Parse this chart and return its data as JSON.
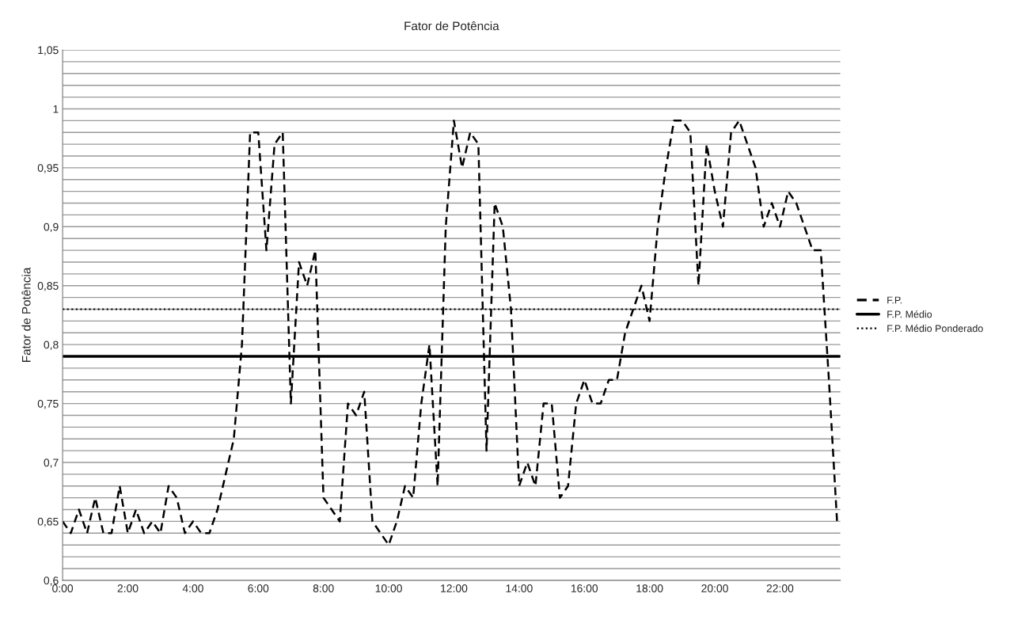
{
  "chart_data": {
    "type": "line",
    "title": "Fator de Potência",
    "ylabel": "Fator de Potência",
    "categories": [
      "0:00",
      null,
      null,
      null,
      null,
      null,
      null,
      null,
      "2:00",
      null,
      null,
      null,
      null,
      null,
      null,
      null,
      "4:00",
      null,
      null,
      null,
      null,
      null,
      null,
      null,
      "6:00",
      null,
      null,
      null,
      null,
      null,
      null,
      null,
      "8:00",
      null,
      null,
      null,
      null,
      null,
      null,
      null,
      "10:00",
      null,
      null,
      null,
      null,
      null,
      null,
      null,
      "12:00",
      null,
      null,
      null,
      null,
      null,
      null,
      null,
      "14:00",
      null,
      null,
      null,
      null,
      null,
      null,
      null,
      "16:00",
      null,
      null,
      null,
      null,
      null,
      null,
      null,
      "18:00",
      null,
      null,
      null,
      null,
      null,
      null,
      null,
      "20:00",
      null,
      null,
      null,
      null,
      null,
      null,
      null,
      "22:00",
      null,
      null,
      null,
      null,
      null,
      null,
      null
    ],
    "series": [
      {
        "name": "F.P.",
        "color": "#000000",
        "line_style": "dashed",
        "values": [
          0.65,
          0.64,
          0.66,
          0.64,
          0.67,
          0.64,
          0.64,
          0.68,
          0.64,
          0.66,
          0.64,
          0.65,
          0.64,
          0.68,
          0.67,
          0.64,
          0.65,
          0.64,
          0.64,
          0.66,
          0.69,
          0.72,
          0.8,
          0.98,
          0.98,
          0.88,
          0.97,
          0.98,
          0.75,
          0.87,
          0.85,
          0.88,
          0.67,
          0.66,
          0.65,
          0.75,
          0.74,
          0.76,
          0.65,
          0.64,
          0.63,
          0.65,
          0.68,
          0.67,
          0.75,
          0.8,
          0.68,
          0.9,
          0.99,
          0.95,
          0.98,
          0.97,
          0.71,
          0.92,
          0.9,
          0.83,
          0.68,
          0.7,
          0.68,
          0.75,
          0.75,
          0.67,
          0.68,
          0.75,
          0.77,
          0.75,
          0.75,
          0.77,
          0.77,
          0.81,
          0.83,
          0.85,
          0.82,
          0.9,
          0.95,
          0.99,
          0.99,
          0.98,
          0.85,
          0.97,
          0.93,
          0.9,
          0.98,
          0.99,
          0.97,
          0.95,
          0.9,
          0.92,
          0.9,
          0.93,
          0.92,
          0.9,
          0.88,
          0.88,
          0.77,
          0.65
        ]
      }
    ],
    "ref_lines": [
      {
        "axis": "y",
        "value": 0.79,
        "label": "F.P. Médio",
        "color": "#000000",
        "line_style": "solid"
      },
      {
        "axis": "y",
        "value": 0.83,
        "label": "F.P. Médio Ponderado",
        "color": "#000000",
        "line_style": "dotted"
      }
    ],
    "ylim": [
      0.6,
      1.05
    ],
    "yticks": [
      {
        "value": 0.6,
        "label": "0,6"
      },
      {
        "value": 0.61,
        "label": null
      },
      {
        "value": 0.62,
        "label": null
      },
      {
        "value": 0.63,
        "label": null
      },
      {
        "value": 0.64,
        "label": null
      },
      {
        "value": 0.65,
        "label": "0,65"
      },
      {
        "value": 0.66,
        "label": null
      },
      {
        "value": 0.67,
        "label": null
      },
      {
        "value": 0.68,
        "label": null
      },
      {
        "value": 0.69,
        "label": null
      },
      {
        "value": 0.7,
        "label": "0,7"
      },
      {
        "value": 0.71,
        "label": null
      },
      {
        "value": 0.72,
        "label": null
      },
      {
        "value": 0.73,
        "label": null
      },
      {
        "value": 0.74,
        "label": null
      },
      {
        "value": 0.75,
        "label": "0,75"
      },
      {
        "value": 0.76,
        "label": null
      },
      {
        "value": 0.77,
        "label": null
      },
      {
        "value": 0.78,
        "label": null
      },
      {
        "value": 0.79,
        "label": null
      },
      {
        "value": 0.8,
        "label": "0,8"
      },
      {
        "value": 0.81,
        "label": null
      },
      {
        "value": 0.82,
        "label": null
      },
      {
        "value": 0.83,
        "label": null
      },
      {
        "value": 0.84,
        "label": null
      },
      {
        "value": 0.85,
        "label": "0,85"
      },
      {
        "value": 0.86,
        "label": null
      },
      {
        "value": 0.87,
        "label": null
      },
      {
        "value": 0.88,
        "label": null
      },
      {
        "value": 0.89,
        "label": null
      },
      {
        "value": 0.9,
        "label": "0,9"
      },
      {
        "value": 0.91,
        "label": null
      },
      {
        "value": 0.92,
        "label": null
      },
      {
        "value": 0.93,
        "label": null
      },
      {
        "value": 0.94,
        "label": null
      },
      {
        "value": 0.95,
        "label": "0,95"
      },
      {
        "value": 0.96,
        "label": null
      },
      {
        "value": 0.97,
        "label": null
      },
      {
        "value": 0.98,
        "label": null
      },
      {
        "value": 0.99,
        "label": null
      },
      {
        "value": 1,
        "label": "1"
      },
      {
        "value": 1.01,
        "label": null
      },
      {
        "value": 1.02,
        "label": null
      },
      {
        "value": 1.03,
        "label": null
      },
      {
        "value": 1.04,
        "label": null
      },
      {
        "value": 1.05,
        "label": "1,05"
      }
    ],
    "grid": "y",
    "legend": "right",
    "marker": "none"
  }
}
